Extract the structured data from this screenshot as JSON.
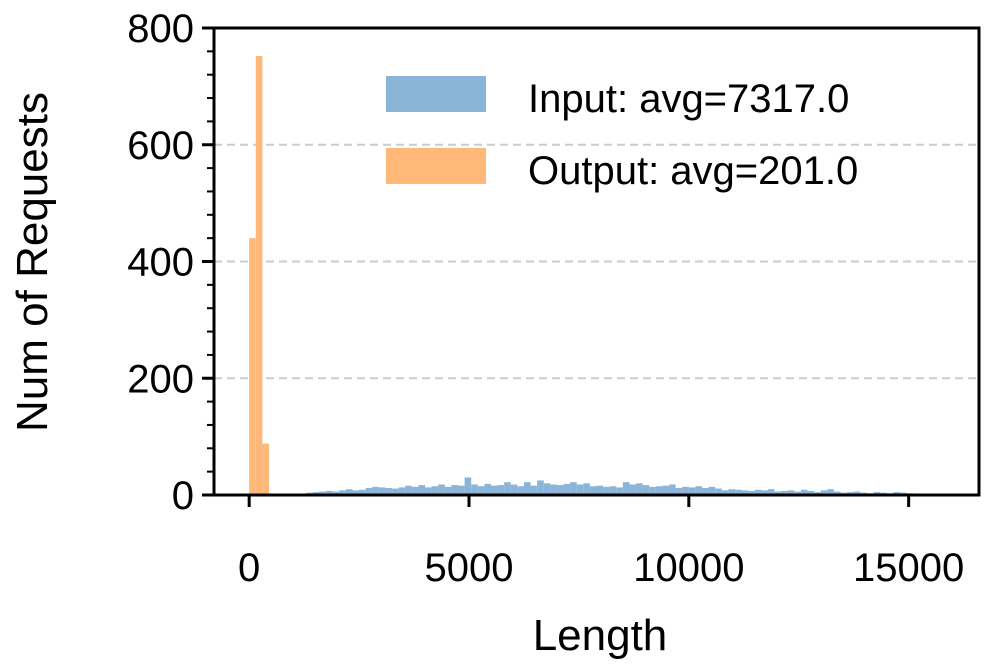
{
  "chart_data": {
    "type": "bar",
    "xlabel": "Length",
    "ylabel": "Num of Requests",
    "xlim": [
      -800,
      16600
    ],
    "ylim": [
      0,
      800
    ],
    "x_ticks": [
      0,
      5000,
      10000,
      15000
    ],
    "y_ticks": [
      0,
      200,
      400,
      600,
      800
    ],
    "y_minor_step": 40,
    "grid": "horizontal dashed",
    "legend_position": "top-right",
    "series": [
      {
        "name": "Input: avg=7317.0",
        "color": "#8bb5d8",
        "bin_width": 150,
        "bins_start": [
          1300,
          1450,
          1600,
          1750,
          1900,
          2050,
          2200,
          2350,
          2500,
          2650,
          2800,
          2950,
          3100,
          3250,
          3400,
          3550,
          3700,
          3850,
          4000,
          4150,
          4300,
          4450,
          4600,
          4750,
          4900,
          5050,
          5200,
          5350,
          5500,
          5650,
          5800,
          5950,
          6100,
          6250,
          6400,
          6550,
          6700,
          6850,
          7000,
          7150,
          7300,
          7450,
          7600,
          7750,
          7900,
          8050,
          8200,
          8350,
          8500,
          8650,
          8800,
          8950,
          9100,
          9250,
          9400,
          9550,
          9700,
          9850,
          10000,
          10150,
          10300,
          10450,
          10600,
          10750,
          10900,
          11050,
          11200,
          11350,
          11500,
          11650,
          11800,
          11950,
          12100,
          12250,
          12400,
          12550,
          12700,
          12850,
          13000,
          13150,
          13300,
          13450,
          13600,
          13750,
          13900,
          14050,
          14200,
          14350,
          14500,
          14650,
          14800,
          14950,
          15100
        ],
        "counts": [
          4,
          5,
          6,
          7,
          6,
          8,
          10,
          8,
          9,
          12,
          14,
          13,
          12,
          11,
          13,
          16,
          14,
          17,
          13,
          15,
          18,
          14,
          17,
          16,
          30,
          18,
          15,
          19,
          16,
          17,
          22,
          18,
          15,
          22,
          16,
          25,
          20,
          18,
          17,
          19,
          22,
          18,
          20,
          15,
          16,
          14,
          15,
          13,
          22,
          18,
          20,
          17,
          14,
          15,
          16,
          18,
          12,
          14,
          13,
          15,
          12,
          14,
          11,
          8,
          10,
          9,
          8,
          7,
          9,
          8,
          10,
          6,
          7,
          8,
          6,
          9,
          7,
          5,
          8,
          10,
          6,
          4,
          5,
          6,
          4,
          3,
          5,
          4,
          3,
          5,
          4,
          3,
          2
        ],
        "opacity": 1
      },
      {
        "name": "Output: avg=201.0",
        "color": "#ffb877",
        "bin_width": 150,
        "bins_start": [
          0,
          150,
          300
        ],
        "counts": [
          440,
          752,
          88
        ]
      }
    ]
  }
}
